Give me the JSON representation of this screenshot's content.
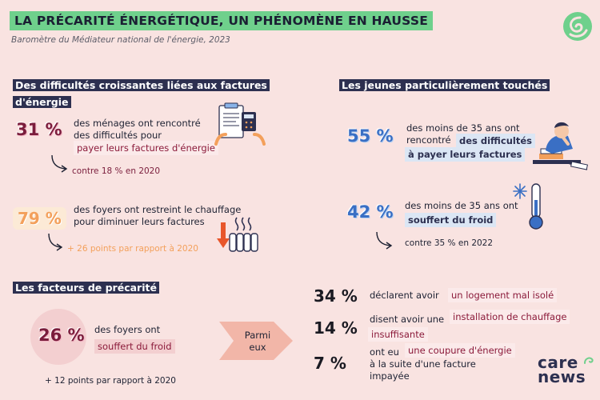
{
  "header": {
    "title": "LA PRÉCARITÉ ÉNERGÉTIQUE, UN PHÉNOMÈNE EN HAUSSE",
    "subtitle": "Baromètre du Médiateur national de l'énergie, 2023"
  },
  "section1": {
    "title_line1": "Des difficultés croissantes liées aux factures",
    "title_line2": "d'énergie",
    "stat1": {
      "value": "31 %",
      "text_line1": "des ménages ont rencontré",
      "text_line2": "des difficultés pour",
      "highlight": "payer leurs factures d'énergie",
      "compare": "contre 18 % en 2020"
    },
    "stat2": {
      "value": "79 %",
      "text_line1": "des foyers ont restreint le chauffage",
      "text_line2": "pour diminuer leurs factures",
      "compare": "+ 26 points par rapport à 2020"
    }
  },
  "section2": {
    "title": "Les jeunes particulièrement touchés",
    "stat1": {
      "value": "55 %",
      "text_line1": "des moins de 35 ans ont",
      "text_line2": "rencontré",
      "highlight_line1": "des difficultés",
      "highlight_line2": "à payer leurs factures"
    },
    "stat2": {
      "value": "42 %",
      "text_line1": "des moins de 35 ans ont",
      "highlight": "souffert du froid",
      "compare": "contre 35 % en 2022"
    }
  },
  "section3": {
    "title": "Les facteurs de précarité",
    "stat": {
      "value": "26 %",
      "text": "des foyers ont",
      "highlight": "souffert du froid",
      "compare": "+ 12 points par rapport à 2020"
    },
    "arrow_line1": "Parmi",
    "arrow_line2": "eux",
    "items": [
      {
        "value": "34 %",
        "text": "déclarent avoir",
        "highlight": "un logement mal isolé"
      },
      {
        "value": "14 %",
        "text": "disent avoir une",
        "highlight_line1": "installation de chauffage",
        "highlight_line2": "insuffisante"
      },
      {
        "value": "7 %",
        "text_line1": "ont eu",
        "highlight": "une coupure d'énergie",
        "text_line2": "à la suite d'une facture",
        "text_line3": "impayée"
      }
    ]
  },
  "brand": {
    "line1": "care",
    "line2": "news"
  },
  "colors": {
    "background": "#f9e3e1",
    "title_bg": "#6fd08c",
    "section_bg": "#2d3050",
    "red": "#7a1d3c",
    "orange": "#f3a05b",
    "blue": "#3a6fc4",
    "logo_green": "#6fd08c"
  },
  "icons": [
    "logo-swirl-icon",
    "document-calculator-icon",
    "radiator-icon",
    "tired-person-icon",
    "thermometer-snowflake-icon",
    "curved-arrow-icon"
  ]
}
